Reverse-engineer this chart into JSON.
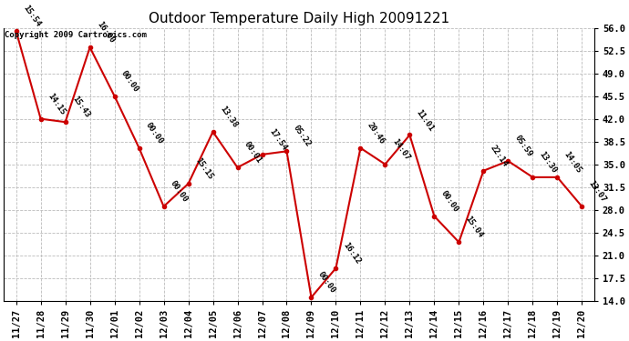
{
  "title": "Outdoor Temperature Daily High 20091221",
  "copyright": "Copyright 2009 Cartronics.com",
  "dates": [
    "11/27",
    "11/28",
    "11/29",
    "11/30",
    "12/01",
    "12/02",
    "12/03",
    "12/04",
    "12/05",
    "12/06",
    "12/07",
    "12/08",
    "12/09",
    "12/10",
    "12/11",
    "12/12",
    "12/13",
    "12/14",
    "12/15",
    "12/16",
    "12/17",
    "12/18",
    "12/19",
    "12/20"
  ],
  "values": [
    55.5,
    42.0,
    41.5,
    53.0,
    45.5,
    37.5,
    28.5,
    32.0,
    40.0,
    34.5,
    36.5,
    37.0,
    14.5,
    19.0,
    37.5,
    35.0,
    39.5,
    27.0,
    23.0,
    34.0,
    35.5,
    33.0,
    33.0,
    28.5
  ],
  "labels": [
    "15:54",
    "14:15",
    "15:43",
    "16:00",
    "00:00",
    "00:00",
    "00:00",
    "15:15",
    "13:38",
    "00:01",
    "17:54",
    "05:22",
    "00:00",
    "16:12",
    "20:46",
    "14:07",
    "11:01",
    "00:00",
    "15:04",
    "22:14",
    "05:59",
    "13:30",
    "14:05",
    "13:07"
  ],
  "ylim": [
    14.0,
    56.0
  ],
  "yticks": [
    14.0,
    17.5,
    21.0,
    24.5,
    28.0,
    31.5,
    35.0,
    38.5,
    42.0,
    45.5,
    49.0,
    52.5,
    56.0
  ],
  "line_color": "#cc0000",
  "marker_color": "#cc0000",
  "bg_color": "#ffffff",
  "grid_color": "#bbbbbb",
  "title_fontsize": 11,
  "label_fontsize": 6.5,
  "tick_fontsize": 7.5,
  "copyright_fontsize": 6.5
}
